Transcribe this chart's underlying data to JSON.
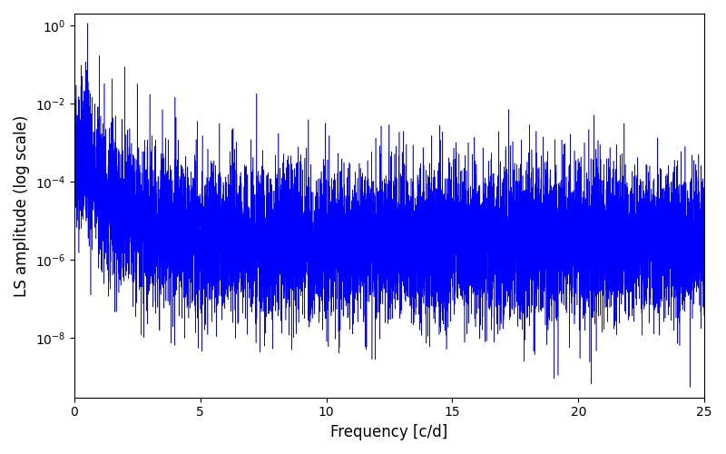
{
  "xlabel": "Frequency [c/d]",
  "ylabel": "LS amplitude (log scale)",
  "xlim": [
    0,
    25
  ],
  "ylim": [
    3e-10,
    2.0
  ],
  "line_color": "blue",
  "line_width": 0.4,
  "background_color": "white",
  "fig_width": 8.0,
  "fig_height": 5.0,
  "dpi": 100,
  "n_points": 10000,
  "freq_max": 25.0,
  "seed": 42
}
